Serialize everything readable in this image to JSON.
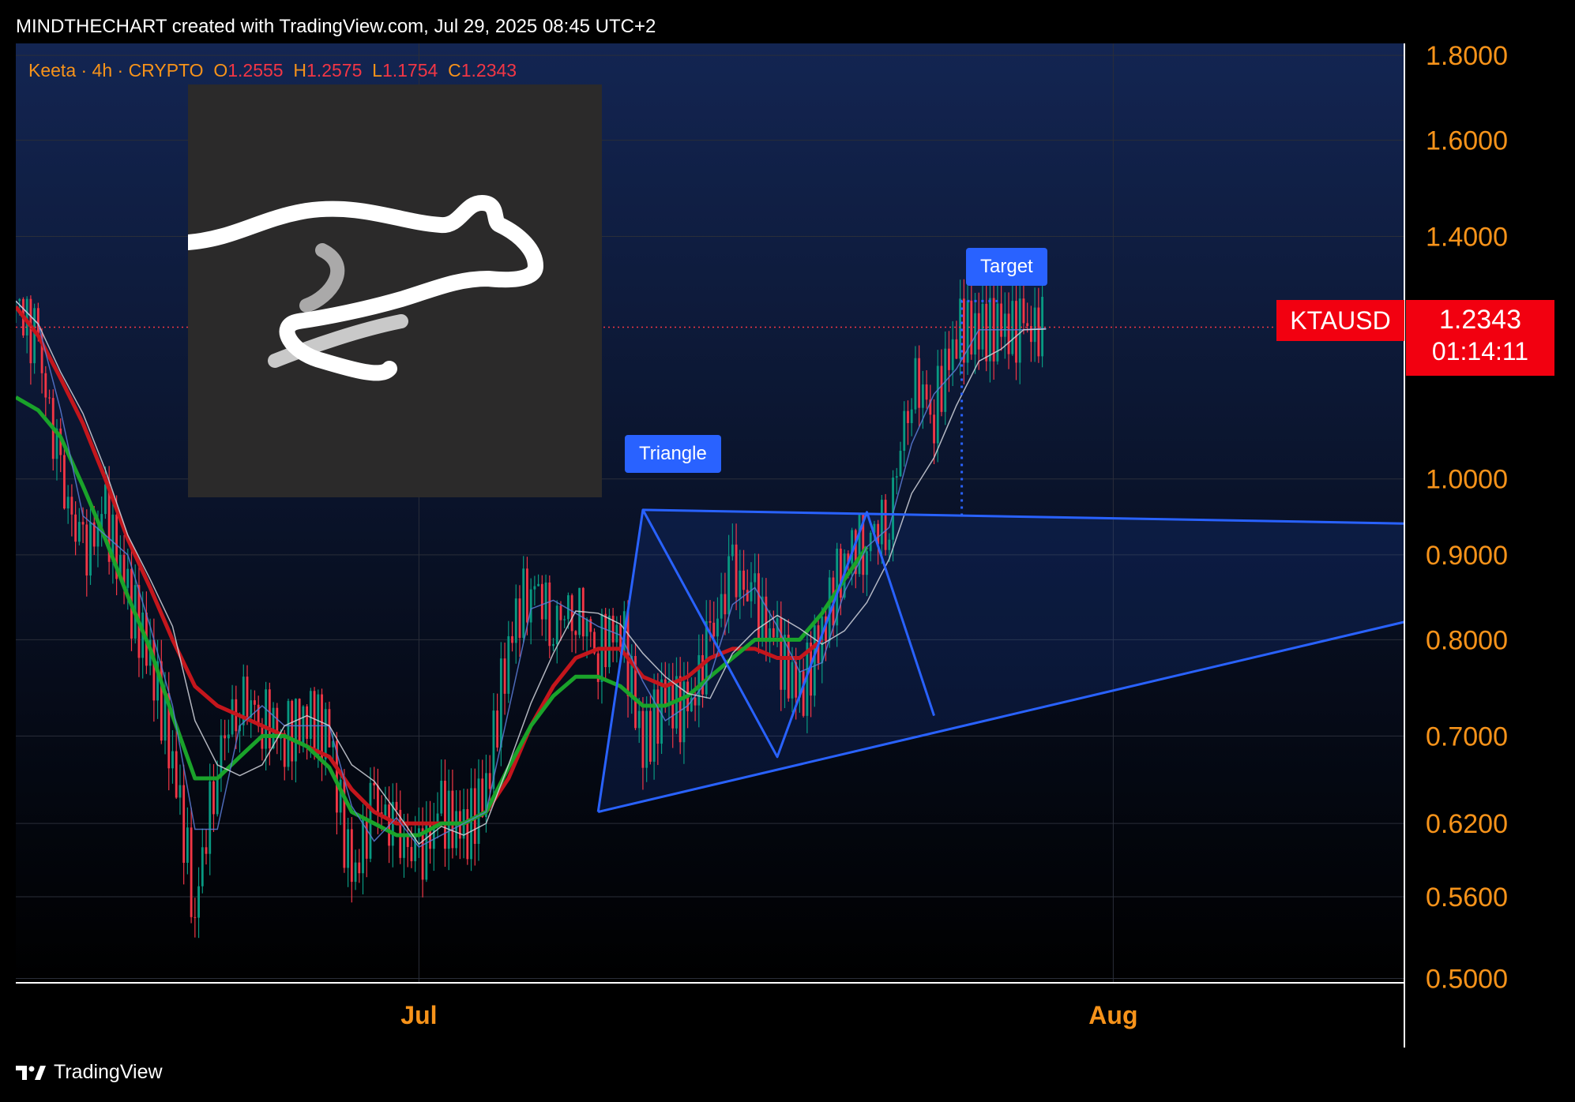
{
  "header": {
    "text": "MINDTHECHART created with TradingView.com, Jul 29, 2025 08:45 UTC+2"
  },
  "legend": {
    "prefix": "Keeta · 4h · CRYPTO",
    "open_label": "O",
    "open": "1.2555",
    "high_label": "H",
    "high": "1.2575",
    "low_label": "L",
    "low": "1.1754",
    "close_label": "C",
    "close": "1.2343"
  },
  "price_tag": {
    "symbol": "KTAUSD",
    "price": "1.2343",
    "countdown": "01:14:11"
  },
  "annotations": {
    "triangle": "Triangle",
    "target": "Target"
  },
  "footer": {
    "brand": "TradingView"
  },
  "colors": {
    "background": "#000000",
    "axis_text": "#f7931a",
    "up_candle": "#089981",
    "down_candle": "#f23645",
    "pattern_blue": "#2962ff",
    "ma_red": "#c4161c",
    "ma_green": "#1aa32a",
    "ma_white": "#d1d4dc",
    "ma_blue": "#5b7bd6",
    "price_tag": "#f20010"
  },
  "chart_data": {
    "type": "candlestick",
    "symbol": "KTAUSD",
    "interval": "4h",
    "scale": "log",
    "grid": true,
    "y_ticks": [
      "1.8000",
      "1.6000",
      "1.4000",
      "1.0000",
      "0.9000",
      "0.8000",
      "0.7000",
      "0.6200",
      "0.5600",
      "0.5000"
    ],
    "y_tick_values": [
      1.8,
      1.6,
      1.4,
      1.0,
      0.9,
      0.8,
      0.7,
      0.62,
      0.56,
      0.5
    ],
    "ylim": [
      0.497,
      1.83
    ],
    "x_ticks": [
      "Jul",
      "Aug"
    ],
    "x_tick_dates": [
      "2025-07-01",
      "2025-08-01"
    ],
    "xlim": [
      "2025-06-13",
      "2025-08-14"
    ],
    "last_price": 1.2343,
    "candles_approx": {
      "dates": [
        "2025-06-13",
        "2025-06-14",
        "2025-06-15",
        "2025-06-16",
        "2025-06-17",
        "2025-06-18",
        "2025-06-19",
        "2025-06-20",
        "2025-06-21",
        "2025-06-22",
        "2025-06-23",
        "2025-06-24",
        "2025-06-25",
        "2025-06-26",
        "2025-06-27",
        "2025-06-28",
        "2025-06-29",
        "2025-06-30",
        "2025-07-01",
        "2025-07-02",
        "2025-07-03",
        "2025-07-04",
        "2025-07-05",
        "2025-07-06",
        "2025-07-07",
        "2025-07-08",
        "2025-07-09",
        "2025-07-10",
        "2025-07-11",
        "2025-07-12",
        "2025-07-13",
        "2025-07-14",
        "2025-07-15",
        "2025-07-16",
        "2025-07-17",
        "2025-07-18",
        "2025-07-19",
        "2025-07-20",
        "2025-07-21",
        "2025-07-22",
        "2025-07-23",
        "2025-07-24",
        "2025-07-25",
        "2025-07-26",
        "2025-07-27",
        "2025-07-28",
        "2025-07-29"
      ],
      "close": [
        1.28,
        1.2,
        1.0,
        0.9,
        0.95,
        0.85,
        0.78,
        0.68,
        0.55,
        0.68,
        0.74,
        0.72,
        0.7,
        0.72,
        0.7,
        0.57,
        0.64,
        0.61,
        0.59,
        0.63,
        0.61,
        0.65,
        0.8,
        0.87,
        0.82,
        0.84,
        0.79,
        0.82,
        0.69,
        0.74,
        0.72,
        0.8,
        0.88,
        0.84,
        0.79,
        0.74,
        0.81,
        0.9,
        0.92,
        0.95,
        1.15,
        1.1,
        1.23,
        1.23,
        1.23,
        1.23,
        1.2343
      ]
    },
    "moving_averages": [
      {
        "color": "red",
        "values_approx": [
          1.27,
          1.22,
          1.15,
          1.08,
          1.0,
          0.92,
          0.86,
          0.8,
          0.75,
          0.73,
          0.72,
          0.71,
          0.7,
          0.69,
          0.68,
          0.65,
          0.63,
          0.62,
          0.62,
          0.62,
          0.62,
          0.63,
          0.66,
          0.71,
          0.75,
          0.78,
          0.79,
          0.79,
          0.76,
          0.75,
          0.76,
          0.78,
          0.79,
          0.79,
          0.78,
          0.78,
          0.8
        ]
      },
      {
        "color": "green",
        "values_approx": [
          1.12,
          1.1,
          1.06,
          0.99,
          0.92,
          0.85,
          0.79,
          0.72,
          0.66,
          0.66,
          0.68,
          0.7,
          0.7,
          0.69,
          0.67,
          0.63,
          0.62,
          0.61,
          0.61,
          0.62,
          0.62,
          0.63,
          0.67,
          0.71,
          0.74,
          0.76,
          0.76,
          0.75,
          0.73,
          0.73,
          0.74,
          0.76,
          0.78,
          0.8,
          0.8,
          0.8,
          0.83,
          0.87,
          0.91
        ]
      }
    ],
    "pattern": {
      "name": "Triangle",
      "upper_line": [
        [
          "2025-07-11",
          0.958
        ],
        [
          "2025-08-14",
          0.94
        ]
      ],
      "lower_line": [
        [
          "2025-07-09",
          0.63
        ],
        [
          "2025-08-14",
          0.82
        ]
      ],
      "zigzag": [
        [
          "2025-07-09",
          0.63
        ],
        [
          "2025-07-11",
          0.958
        ],
        [
          "2025-07-17",
          0.68
        ],
        [
          "2025-07-21",
          0.955
        ],
        [
          "2025-07-24",
          0.72
        ]
      ],
      "target_label": "Target",
      "target_level": 1.28
    }
  }
}
